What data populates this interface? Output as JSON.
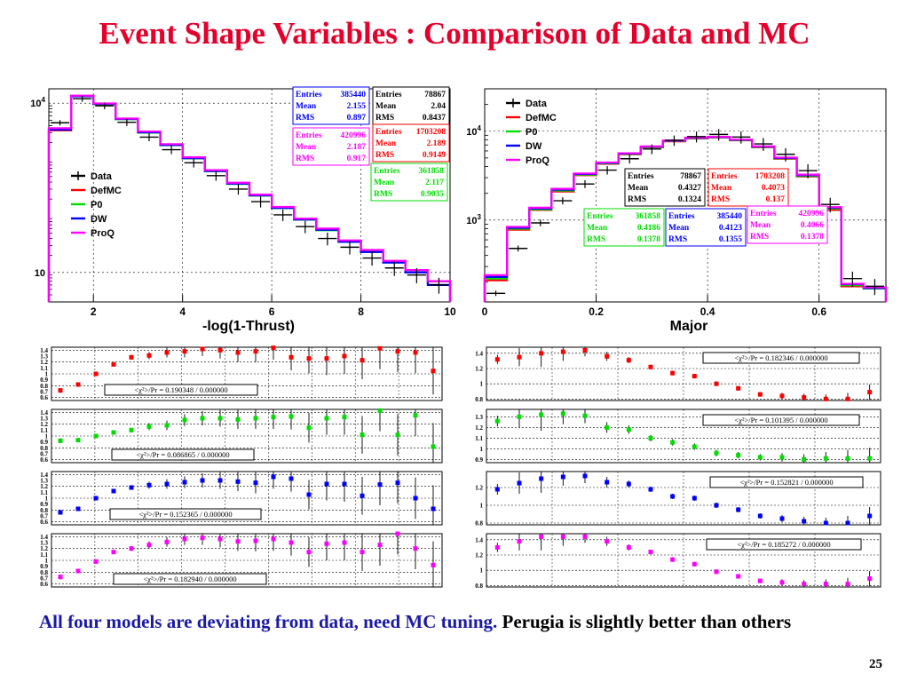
{
  "slide": {
    "title": "Event Shape Variables : Comparison of Data and MC",
    "bottom_text_blue": "All four models are deviating from data, need MC tuning.",
    "bottom_text_black": " Perugia is slightly better than others",
    "page_number": "25"
  },
  "colors": {
    "Data": "#000000",
    "DefMC": "#ff0000",
    "P0": "#00dd00",
    "DW": "#0000ff",
    "ProQ": "#ff00ff",
    "title": "#e4002b",
    "bottom_blue": "#1a1aa6"
  },
  "chart_data": [
    {
      "id": "thrust",
      "type": "line",
      "xlabel": "-log(1-Thrust)",
      "log_y": true,
      "xlim": [
        1,
        10
      ],
      "ylim": [
        3,
        18000
      ],
      "x_ticks": [
        "2",
        "4",
        "6",
        "8",
        "10"
      ],
      "x_tick_values": [
        2,
        4,
        6,
        8,
        10
      ],
      "y_ticks": [
        "10",
        "10^4"
      ],
      "y_tick_values": [
        10,
        10000
      ],
      "legend": [
        "Data",
        "DefMC",
        "P0",
        "DW",
        "ProQ"
      ],
      "bin_edges": [
        1.0,
        1.5,
        2.0,
        2.5,
        3.0,
        3.5,
        4.0,
        4.5,
        5.0,
        5.5,
        6.0,
        6.5,
        7.0,
        7.5,
        8.0,
        8.5,
        9.0,
        9.5,
        10.0
      ],
      "series": [
        {
          "name": "Data",
          "values": [
            4500,
            12000,
            9000,
            4600,
            2500,
            1500,
            880,
            520,
            300,
            180,
            105,
            65,
            40,
            28,
            18,
            12,
            9,
            6
          ]
        },
        {
          "name": "DefMC",
          "values": [
            3300,
            13500,
            9800,
            5300,
            3100,
            1850,
            1080,
            640,
            380,
            235,
            140,
            88,
            58,
            36,
            24,
            16,
            11,
            7
          ]
        },
        {
          "name": "P0",
          "values": [
            3500,
            13200,
            9600,
            5200,
            3000,
            1800,
            1050,
            620,
            370,
            230,
            138,
            86,
            56,
            35,
            23,
            15,
            11,
            7
          ]
        },
        {
          "name": "DW",
          "values": [
            3400,
            13300,
            9700,
            5250,
            3050,
            1820,
            1060,
            630,
            375,
            232,
            139,
            87,
            57,
            35,
            23,
            15,
            10,
            6
          ]
        },
        {
          "name": "ProQ",
          "values": [
            3600,
            13600,
            9900,
            5350,
            3150,
            1880,
            1100,
            650,
            390,
            240,
            145,
            90,
            60,
            37,
            25,
            16,
            11,
            7
          ]
        }
      ],
      "stats_boxes": [
        {
          "color": "#0000ff",
          "entries": "385440",
          "mean": "2.155",
          "rms": "0.897"
        },
        {
          "color": "#000000",
          "entries": "78867",
          "mean": "2.04",
          "rms": "0.8437"
        },
        {
          "color": "#ff00ff",
          "entries": "420996",
          "mean": "2.187",
          "rms": "0.917"
        },
        {
          "color": "#ff0000",
          "entries": "1703208",
          "mean": "2.189",
          "rms": "0.9149"
        },
        {
          "color": "#00dd00",
          "entries": "361858",
          "mean": "2.117",
          "rms": "0.9035"
        }
      ],
      "stats_labels": {
        "entries": "Entries",
        "mean": "Mean",
        "rms": "RMS"
      }
    },
    {
      "id": "major",
      "type": "line",
      "xlabel": "Major",
      "log_y": true,
      "xlim": [
        0,
        0.72
      ],
      "ylim": [
        120,
        30000
      ],
      "x_ticks": [
        "0",
        "0.2",
        "0.4",
        "0.6"
      ],
      "x_tick_values": [
        0,
        0.2,
        0.4,
        0.6
      ],
      "y_ticks": [
        "10^3",
        "10^4"
      ],
      "y_tick_values": [
        1000,
        10000
      ],
      "legend": [
        "Data",
        "DefMC",
        "P0",
        "DW",
        "ProQ"
      ],
      "bin_edges": [
        0,
        0.04,
        0.08,
        0.12,
        0.16,
        0.2,
        0.24,
        0.28,
        0.32,
        0.36,
        0.4,
        0.44,
        0.48,
        0.52,
        0.56,
        0.6,
        0.64,
        0.68,
        0.72
      ],
      "series": [
        {
          "name": "Data",
          "values": [
            150,
            480,
            930,
            1650,
            2550,
            3650,
            4900,
            6300,
            7900,
            8700,
            9200,
            8600,
            7200,
            5500,
            3600,
            1500,
            220,
            180
          ]
        },
        {
          "name": "DefMC",
          "values": [
            210,
            780,
            1300,
            2100,
            3200,
            4300,
            5500,
            6600,
            7700,
            8300,
            8500,
            7900,
            6600,
            4900,
            3100,
            1300,
            180,
            170
          ]
        },
        {
          "name": "P0",
          "values": [
            220,
            800,
            1320,
            2150,
            3250,
            4350,
            5550,
            6650,
            7750,
            8350,
            8550,
            7950,
            6650,
            4950,
            3150,
            1350,
            185,
            170
          ]
        },
        {
          "name": "DW",
          "values": [
            230,
            820,
            1350,
            2200,
            3300,
            4400,
            5600,
            6700,
            7800,
            8400,
            8600,
            8000,
            6700,
            5000,
            3200,
            1380,
            190,
            172
          ]
        },
        {
          "name": "ProQ",
          "values": [
            240,
            840,
            1380,
            2250,
            3350,
            4450,
            5650,
            6750,
            7850,
            8450,
            8650,
            8050,
            6750,
            5050,
            3250,
            1400,
            192,
            175
          ]
        }
      ],
      "stats_boxes": [
        {
          "color": "#000000",
          "entries": "78867",
          "mean": "0.4327",
          "rms": "0.1324"
        },
        {
          "color": "#ff0000",
          "entries": "1703208",
          "mean": "0.4073",
          "rms": "0.137"
        },
        {
          "color": "#00dd00",
          "entries": "361858",
          "mean": "0.4186",
          "rms": "0.1378"
        },
        {
          "color": "#0000ff",
          "entries": "385440",
          "mean": "0.4123",
          "rms": "0.1355"
        },
        {
          "color": "#ff00ff",
          "entries": "420996",
          "mean": "0.4066",
          "rms": "0.1378"
        }
      ],
      "stats_labels": {
        "entries": "Entries",
        "mean": "Mean",
        "rms": "RMS"
      }
    },
    {
      "id": "thrust-ratio-defmc",
      "type": "scatter",
      "model": "DefMC",
      "color": "#ff0000",
      "ylim": [
        0.55,
        1.45
      ],
      "y_ticks": [
        "0.6",
        "0.8",
        "1",
        "1.2",
        "1.4"
      ],
      "y_tick_values": [
        0.6,
        0.8,
        1,
        1.2,
        1.4
      ],
      "y_minor_ticks": [
        0.7,
        0.9,
        1.1,
        1.3
      ],
      "y_minor_labels": [
        "0.7",
        "0.9",
        "1.1",
        "1.3"
      ],
      "chi2": "<χ²>/Pr = 0.190348 / 0.000000",
      "values": [
        0.72,
        0.82,
        1.0,
        1.16,
        1.28,
        1.31,
        1.36,
        1.38,
        1.42,
        1.4,
        1.36,
        1.38,
        1.44,
        1.28,
        1.26,
        1.26,
        1.3,
        1.23,
        1.43,
        1.38,
        1.36,
        1.05
      ],
      "errors": [
        0.04,
        0.03,
        0.02,
        0.03,
        0.04,
        0.06,
        0.08,
        0.1,
        0.12,
        0.14,
        0.16,
        0.18,
        0.2,
        0.22,
        0.25,
        0.28,
        0.3,
        0.32,
        0.35,
        0.35,
        0.35,
        0.4
      ]
    },
    {
      "id": "thrust-ratio-p0",
      "type": "scatter",
      "model": "P0",
      "color": "#00dd00",
      "ylim": [
        0.55,
        1.45
      ],
      "y_ticks": [
        "0.6",
        "0.8",
        "1",
        "1.2",
        "1.4"
      ],
      "y_tick_values": [
        0.6,
        0.8,
        1,
        1.2,
        1.4
      ],
      "y_minor_ticks": [
        0.7,
        0.9,
        1.1,
        1.3
      ],
      "y_minor_labels": [
        "0.7",
        "0.9",
        "1.1",
        "1.3"
      ],
      "chi2": "<χ²>/Pr = 0.086865 / 0.000000",
      "values": [
        0.92,
        0.93,
        1.0,
        1.06,
        1.1,
        1.16,
        1.18,
        1.27,
        1.3,
        1.3,
        1.28,
        1.3,
        1.32,
        1.33,
        1.14,
        1.3,
        1.32,
        1.02,
        1.43,
        1.02,
        1.35,
        0.82
      ],
      "errors": [
        0.04,
        0.03,
        0.02,
        0.03,
        0.04,
        0.06,
        0.08,
        0.1,
        0.12,
        0.14,
        0.16,
        0.18,
        0.2,
        0.22,
        0.25,
        0.28,
        0.3,
        0.32,
        0.35,
        0.35,
        0.35,
        0.4
      ]
    },
    {
      "id": "thrust-ratio-dw",
      "type": "scatter",
      "model": "DW",
      "color": "#0000ff",
      "ylim": [
        0.55,
        1.45
      ],
      "y_ticks": [
        "0.6",
        "0.8",
        "1",
        "1.2",
        "1.4"
      ],
      "y_tick_values": [
        0.6,
        0.8,
        1,
        1.2,
        1.4
      ],
      "y_minor_ticks": [
        0.7,
        0.9,
        1.1,
        1.3
      ],
      "y_minor_labels": [
        "0.7",
        "0.9",
        "1.1",
        "1.3"
      ],
      "chi2": "<χ²>/Pr = 0.152365 / 0.000000",
      "values": [
        0.76,
        0.82,
        1.0,
        1.12,
        1.18,
        1.22,
        1.24,
        1.27,
        1.3,
        1.3,
        1.28,
        1.26,
        1.36,
        1.33,
        1.06,
        1.24,
        1.24,
        1.04,
        1.23,
        1.26,
        1.0,
        0.82
      ],
      "errors": [
        0.04,
        0.03,
        0.02,
        0.03,
        0.04,
        0.06,
        0.08,
        0.1,
        0.12,
        0.14,
        0.16,
        0.18,
        0.2,
        0.22,
        0.25,
        0.28,
        0.3,
        0.32,
        0.35,
        0.35,
        0.35,
        0.4
      ]
    },
    {
      "id": "thrust-ratio-proq",
      "type": "scatter",
      "model": "ProQ",
      "color": "#ff00ff",
      "ylim": [
        0.55,
        1.45
      ],
      "y_ticks": [
        "0.6",
        "0.8",
        "1",
        "1.2",
        "1.4"
      ],
      "y_tick_values": [
        0.6,
        0.8,
        1,
        1.2,
        1.4
      ],
      "y_minor_ticks": [
        0.7,
        0.9,
        1.1,
        1.3
      ],
      "y_minor_labels": [
        "0.7",
        "0.9",
        "1.1",
        "1.3"
      ],
      "chi2": "<χ²>/Pr = 0.182940 / 0.000000",
      "values": [
        0.72,
        0.82,
        0.98,
        1.14,
        1.2,
        1.26,
        1.31,
        1.36,
        1.38,
        1.36,
        1.32,
        1.33,
        1.36,
        1.3,
        1.14,
        1.28,
        1.3,
        1.14,
        1.26,
        1.45,
        1.2,
        0.92
      ],
      "errors": [
        0.04,
        0.03,
        0.02,
        0.03,
        0.04,
        0.06,
        0.08,
        0.1,
        0.12,
        0.14,
        0.16,
        0.18,
        0.2,
        0.22,
        0.25,
        0.28,
        0.3,
        0.32,
        0.35,
        0.35,
        0.35,
        0.4
      ]
    },
    {
      "id": "major-ratio-defmc",
      "type": "scatter",
      "model": "DefMC",
      "color": "#ff0000",
      "ylim": [
        0.78,
        1.48
      ],
      "y_ticks": [
        "0.8",
        "1",
        "1.2",
        "1.4"
      ],
      "y_tick_values": [
        0.8,
        1,
        1.2,
        1.4
      ],
      "chi2": "<χ²>/Pr = 0.182346 / 0.000000",
      "values": [
        1.32,
        1.35,
        1.4,
        1.42,
        1.44,
        1.36,
        1.31,
        1.22,
        1.14,
        1.1,
        1.0,
        0.94,
        0.86,
        0.84,
        0.82,
        0.8,
        0.8,
        0.89
      ],
      "errors": [
        0.06,
        0.12,
        0.18,
        0.12,
        0.08,
        0.06,
        0.04,
        0.03,
        0.03,
        0.03,
        0.03,
        0.03,
        0.03,
        0.04,
        0.05,
        0.06,
        0.08,
        0.1
      ]
    },
    {
      "id": "major-ratio-p0",
      "type": "scatter",
      "model": "P0",
      "color": "#00dd00",
      "ylim": [
        0.87,
        1.37
      ],
      "y_ticks": [
        "0.9",
        "1",
        "1.1",
        "1.2",
        "1.3"
      ],
      "y_tick_values": [
        0.9,
        1,
        1.1,
        1.2,
        1.3
      ],
      "chi2": "<χ²>/Pr = 0.101395 / 0.000000",
      "values": [
        1.26,
        1.3,
        1.32,
        1.33,
        1.31,
        1.2,
        1.18,
        1.1,
        1.06,
        1.02,
        0.96,
        0.94,
        0.92,
        0.92,
        0.9,
        0.91,
        0.91,
        0.91
      ],
      "errors": [
        0.05,
        0.1,
        0.15,
        0.1,
        0.07,
        0.05,
        0.04,
        0.03,
        0.03,
        0.03,
        0.03,
        0.03,
        0.03,
        0.04,
        0.05,
        0.06,
        0.08,
        0.1
      ]
    },
    {
      "id": "major-ratio-dw",
      "type": "scatter",
      "model": "DW",
      "color": "#0000ff",
      "ylim": [
        0.78,
        1.38
      ],
      "y_ticks": [
        "0.8",
        "1",
        "1.2"
      ],
      "y_tick_values": [
        0.8,
        1,
        1.2
      ],
      "chi2": "<χ²>/Pr = 0.152821 / 0.000000",
      "values": [
        1.18,
        1.25,
        1.3,
        1.32,
        1.33,
        1.26,
        1.24,
        1.18,
        1.1,
        1.08,
        1.0,
        0.95,
        0.88,
        0.85,
        0.82,
        0.8,
        0.8,
        0.88
      ],
      "errors": [
        0.06,
        0.12,
        0.16,
        0.1,
        0.08,
        0.06,
        0.04,
        0.03,
        0.03,
        0.03,
        0.03,
        0.03,
        0.03,
        0.04,
        0.05,
        0.06,
        0.08,
        0.1
      ]
    },
    {
      "id": "major-ratio-proq",
      "type": "scatter",
      "model": "ProQ",
      "color": "#ff00ff",
      "ylim": [
        0.78,
        1.48
      ],
      "y_ticks": [
        "0.8",
        "1",
        "1.2",
        "1.4"
      ],
      "y_tick_values": [
        0.8,
        1,
        1.2,
        1.4
      ],
      "chi2": "<χ²>/Pr = 0.185272 / 0.000000",
      "values": [
        1.3,
        1.38,
        1.44,
        1.44,
        1.44,
        1.38,
        1.3,
        1.24,
        1.14,
        1.08,
        0.98,
        0.92,
        0.86,
        0.84,
        0.82,
        0.82,
        0.82,
        0.89
      ],
      "errors": [
        0.06,
        0.12,
        0.18,
        0.12,
        0.08,
        0.06,
        0.04,
        0.03,
        0.03,
        0.03,
        0.03,
        0.03,
        0.03,
        0.04,
        0.05,
        0.06,
        0.08,
        0.1
      ]
    }
  ]
}
